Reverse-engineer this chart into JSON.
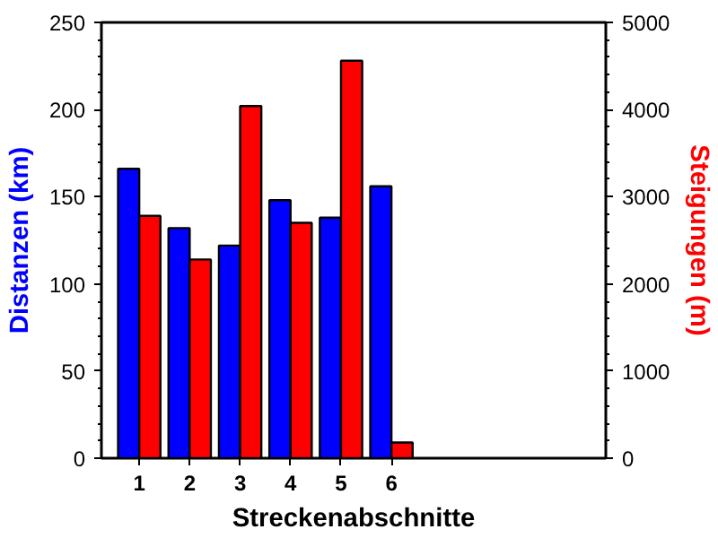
{
  "chart_data": {
    "type": "bar",
    "xlabel": "Streckenabschnitte",
    "ylabel": "Distanzen (km)",
    "y2label": "Steigungen (m)",
    "categories": [
      "1",
      "2",
      "3",
      "4",
      "5",
      "6",
      null,
      null,
      null,
      null
    ],
    "series": [
      {
        "color": "#0000ff",
        "values": [
          166,
          132,
          122,
          148,
          138,
          156,
          null,
          null,
          null,
          null
        ]
      },
      {
        "color": "#ff0000",
        "axis": "y2",
        "values": [
          2780,
          2280,
          4040,
          2700,
          4560,
          180,
          null,
          null,
          null,
          null
        ]
      }
    ],
    "ylim": [
      0,
      250
    ],
    "yticks": [
      0,
      50,
      100,
      150,
      200,
      250
    ],
    "y2lim": [
      0,
      5000
    ],
    "y2ticks": [
      0,
      1000,
      2000,
      3000,
      4000,
      5000
    ],
    "grid": false
  }
}
